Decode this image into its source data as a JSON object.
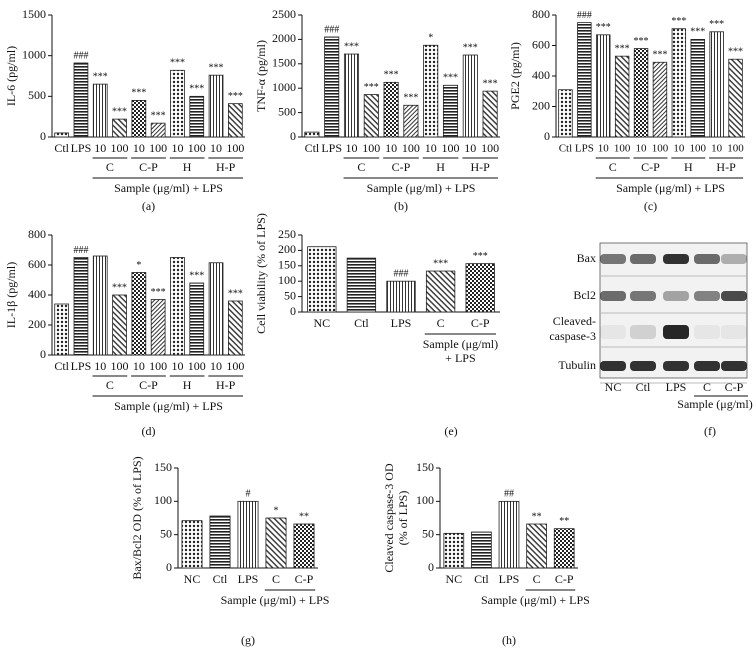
{
  "chart_data": [
    {
      "type": "bar",
      "ylabel": "IL-6 (pg/ml)",
      "panel_label": "(a)",
      "categories": [
        "Ctl",
        "LPS",
        "10",
        "100",
        "10",
        "100",
        "10",
        "100",
        "10",
        "100"
      ],
      "values": [
        50,
        910,
        650,
        220,
        450,
        170,
        820,
        500,
        760,
        410
      ],
      "annotations": [
        null,
        "###",
        "***",
        "***",
        "***",
        "***",
        "***",
        "***",
        "***",
        "***"
      ],
      "groups": [
        {
          "label": "C",
          "members": [
            2,
            3
          ]
        },
        {
          "label": "C-P",
          "members": [
            4,
            5
          ]
        },
        {
          "label": "H",
          "members": [
            6,
            7
          ]
        },
        {
          "label": "H-P",
          "members": [
            8,
            9
          ]
        }
      ],
      "group_title": [
        "Sample (μg/ml) + LPS"
      ],
      "color": "#222",
      "ylim": [
        0,
        1500
      ],
      "yticks": [
        0,
        500,
        1000,
        1500
      ]
    },
    {
      "type": "bar",
      "ylabel": "TNF-α (pg/ml)",
      "panel_label": "(b)",
      "categories": [
        "Ctl",
        "LPS",
        "10",
        "100",
        "10",
        "100",
        "10",
        "100",
        "10",
        "100"
      ],
      "values": [
        100,
        2050,
        1700,
        870,
        1120,
        650,
        1880,
        1060,
        1680,
        940
      ],
      "annotations": [
        null,
        "###",
        "***",
        "***",
        "***",
        "***",
        "*",
        "***",
        "***",
        "***"
      ],
      "groups": [
        {
          "label": "C",
          "members": [
            2,
            3
          ]
        },
        {
          "label": "C-P",
          "members": [
            4,
            5
          ]
        },
        {
          "label": "H",
          "members": [
            6,
            7
          ]
        },
        {
          "label": "H-P",
          "members": [
            8,
            9
          ]
        }
      ],
      "group_title": [
        "Sample (μg/ml) + LPS"
      ],
      "color": "#222",
      "ylim": [
        0,
        2500
      ],
      "yticks": [
        0,
        500,
        1000,
        1500,
        2000,
        2500
      ]
    },
    {
      "type": "bar",
      "ylabel": "PGE2 (pg/ml)",
      "panel_label": "(c)",
      "categories": [
        "Ctl",
        "LPS",
        "10",
        "100",
        "10",
        "100",
        "10",
        "100",
        "10",
        "100"
      ],
      "values": [
        310,
        750,
        670,
        530,
        580,
        490,
        710,
        640,
        690,
        510
      ],
      "annotations": [
        null,
        "###",
        "***",
        "***",
        "***",
        "***",
        "***",
        "***",
        "***",
        "***"
      ],
      "groups": [
        {
          "label": "C",
          "members": [
            2,
            3
          ]
        },
        {
          "label": "C-P",
          "members": [
            4,
            5
          ]
        },
        {
          "label": "H",
          "members": [
            6,
            7
          ]
        },
        {
          "label": "H-P",
          "members": [
            8,
            9
          ]
        }
      ],
      "group_title": [
        "Sample (μg/ml) + LPS"
      ],
      "color": "#222",
      "ylim": [
        0,
        800
      ],
      "yticks": [
        0,
        200,
        400,
        600,
        800
      ]
    },
    {
      "type": "bar",
      "ylabel": "IL-1β (pg/ml)",
      "panel_label": "(d)",
      "categories": [
        "Ctl",
        "LPS",
        "10",
        "100",
        "10",
        "100",
        "10",
        "100",
        "10",
        "100"
      ],
      "values": [
        340,
        650,
        660,
        400,
        550,
        370,
        650,
        480,
        615,
        360
      ],
      "annotations": [
        null,
        "###",
        null,
        "***",
        "*",
        "***",
        null,
        "***",
        null,
        "***"
      ],
      "groups": [
        {
          "label": "C",
          "members": [
            2,
            3
          ]
        },
        {
          "label": "C-P",
          "members": [
            4,
            5
          ]
        },
        {
          "label": "H",
          "members": [
            6,
            7
          ]
        },
        {
          "label": "H-P",
          "members": [
            8,
            9
          ]
        }
      ],
      "group_title": [
        "Sample (μg/ml) + LPS"
      ],
      "color": "#222",
      "ylim": [
        0,
        800
      ],
      "yticks": [
        0,
        200,
        400,
        600,
        800
      ]
    },
    {
      "type": "bar",
      "ylabel": "Cell viability (% of LPS)",
      "panel_label": "(e)",
      "categories": [
        "NC",
        "Ctl",
        "LPS",
        "C",
        "C-P"
      ],
      "values": [
        212,
        175,
        100,
        133,
        157
      ],
      "annotations": [
        null,
        null,
        "###",
        "***",
        "***"
      ],
      "groups": [
        {
          "members": [
            3,
            4
          ]
        }
      ],
      "group_title": [
        "Sample (μg/ml)",
        "+ LPS"
      ],
      "color": "#222",
      "ylim": [
        0,
        250
      ],
      "yticks": [
        0,
        50,
        100,
        150,
        200,
        250
      ]
    },
    {
      "type": "bar",
      "ylabel": "Bax/Bcl2 OD (% of LPS)",
      "panel_label": "(g)",
      "categories": [
        "NC",
        "Ctl",
        "LPS",
        "C",
        "C-P"
      ],
      "values": [
        71,
        78,
        100,
        75,
        66
      ],
      "annotations": [
        null,
        null,
        "#",
        "*",
        "**"
      ],
      "groups": [
        {
          "members": [
            3,
            4
          ]
        }
      ],
      "group_title": [
        "Sample (μg/ml) + LPS"
      ],
      "color": "#222",
      "ylim": [
        0,
        150
      ],
      "yticks": [
        0,
        50,
        100,
        150
      ]
    },
    {
      "type": "bar",
      "ylabel": "Cleaved caspase-3 OD",
      "ylabel2": "(% of LPS)",
      "panel_label": "(h)",
      "categories": [
        "NC",
        "Ctl",
        "LPS",
        "C",
        "C-P"
      ],
      "values": [
        52,
        54,
        100,
        66,
        59
      ],
      "annotations": [
        null,
        null,
        "##",
        "**",
        "**"
      ],
      "groups": [
        {
          "members": [
            3,
            4
          ]
        }
      ],
      "group_title": [
        "Sample (μg/ml) + LPS"
      ],
      "color": "#222",
      "ylim": [
        0,
        150
      ],
      "yticks": [
        0,
        50,
        100,
        150
      ]
    }
  ],
  "blot": {
    "rows": [
      "Bax",
      "Bcl2",
      "Cleaved-",
      "caspase-3",
      "Tubulin"
    ],
    "lanes": [
      "NC",
      "Ctl",
      "LPS",
      "C",
      "C-P"
    ],
    "group_title": "Sample (μg/ml)",
    "panel_label": "(f)"
  }
}
